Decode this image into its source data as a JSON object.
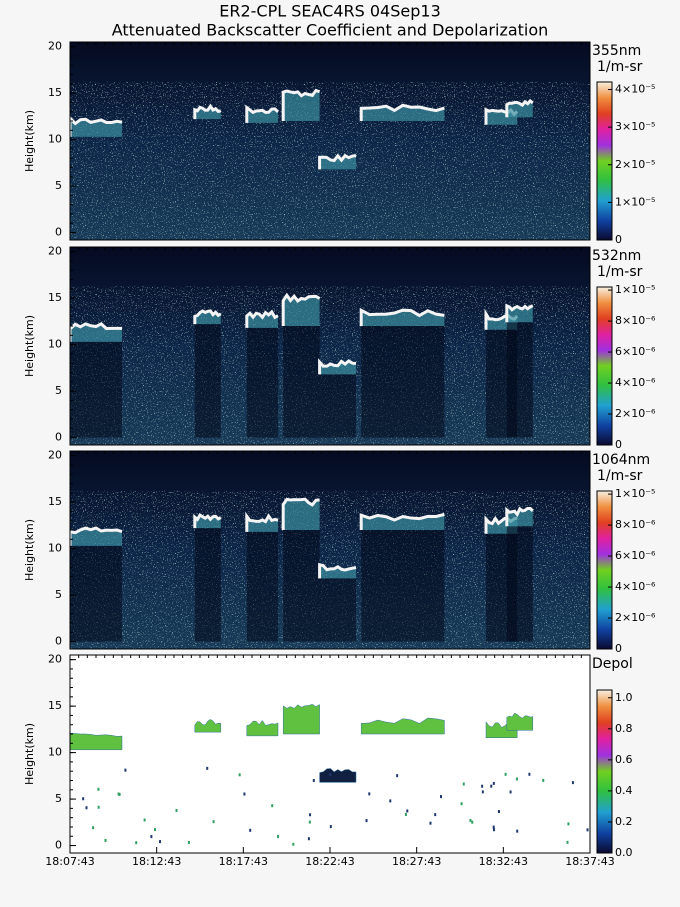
{
  "chart_data": [
    {
      "type": "heatmap",
      "title": "ER2-CPL SEAC4RS 04Sep13",
      "subtitle": "Attenuated Backscatter Coefficient and Depolarization",
      "ylabel": "Height(km)",
      "ylim": [
        -0.8,
        20.5
      ],
      "yticks": [
        0,
        5,
        10,
        15,
        20
      ],
      "color_label": "355nm",
      "color_units": "1/m-sr",
      "clim": [
        0,
        4.2e-05
      ],
      "cticks": [
        0,
        {
          "value": 1e-05,
          "label": "1×10⁻⁵"
        },
        {
          "value": 2e-05,
          "label": "2×10⁻⁵"
        },
        {
          "value": 3e-05,
          "label": "3×10⁻⁵"
        },
        {
          "value": 4e-05,
          "label": "4×10⁻⁵"
        }
      ]
    },
    {
      "type": "heatmap",
      "ylabel": "Height(km)",
      "ylim": [
        -0.8,
        20.5
      ],
      "yticks": [
        0,
        5,
        10,
        15,
        20
      ],
      "color_label": "532nm",
      "color_units": "1/m-sr",
      "clim": [
        0,
        1.02e-05
      ],
      "cticks": [
        0,
        {
          "value": 2e-06,
          "label": "2×10⁻⁶"
        },
        {
          "value": 4e-06,
          "label": "4×10⁻⁶"
        },
        {
          "value": 6e-06,
          "label": "6×10⁻⁶"
        },
        {
          "value": 8e-06,
          "label": "8×10⁻⁶"
        },
        {
          "value": 1e-05,
          "label": "1×10⁻⁵"
        }
      ]
    },
    {
      "type": "heatmap",
      "ylabel": "Height(km)",
      "ylim": [
        -0.8,
        20.5
      ],
      "yticks": [
        0,
        5,
        10,
        15,
        20
      ],
      "color_label": "1064nm",
      "color_units": "1/m-sr",
      "clim": [
        0,
        1.02e-05
      ],
      "cticks": [
        0,
        {
          "value": 2e-06,
          "label": "2×10⁻⁶"
        },
        {
          "value": 4e-06,
          "label": "4×10⁻⁶"
        },
        {
          "value": 6e-06,
          "label": "6×10⁻⁶"
        },
        {
          "value": 8e-06,
          "label": "8×10⁻⁶"
        },
        {
          "value": 1e-05,
          "label": "1×10⁻⁵"
        }
      ]
    },
    {
      "type": "depol",
      "ylabel": "Height(km)",
      "ylim": [
        -0.8,
        20.5
      ],
      "yticks": [
        0,
        5,
        10,
        15,
        20
      ],
      "color_label": "Depol",
      "clim": [
        0,
        1.05
      ],
      "cticks": [
        {
          "value": 0,
          "label": "0.0"
        },
        {
          "value": 0.2,
          "label": "0.2"
        },
        {
          "value": 0.4,
          "label": "0.4"
        },
        {
          "value": 0.6,
          "label": "0.6"
        },
        {
          "value": 0.8,
          "label": "0.8"
        },
        {
          "value": 1,
          "label": "1.0"
        }
      ],
      "xticks": [
        "18:07:43",
        "18:12:43",
        "18:17:43",
        "18:22:43",
        "18:27:43",
        "18:32:43",
        "18:37:43"
      ]
    }
  ]
}
